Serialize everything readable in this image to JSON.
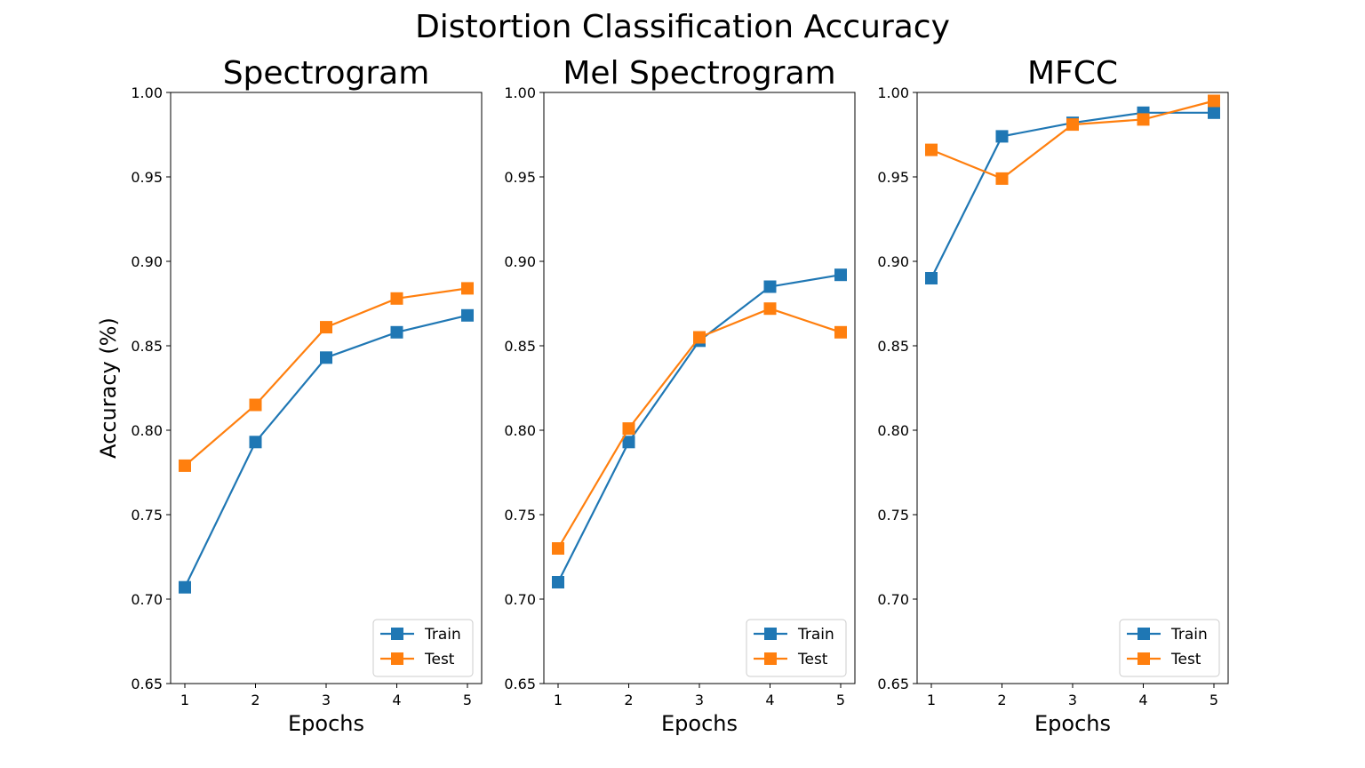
{
  "figure": {
    "title": "Distortion Classification Accuracy"
  },
  "chart_data": [
    {
      "type": "line",
      "title": "Spectrogram",
      "xlabel": "Epochs",
      "ylabel": "Accuracy (%)",
      "x": [
        1,
        2,
        3,
        4,
        5
      ],
      "ylim": [
        0.65,
        1.0
      ],
      "yticks": [
        "0.65",
        "0.70",
        "0.75",
        "0.80",
        "0.85",
        "0.90",
        "0.95",
        "1.00"
      ],
      "xticks": [
        "1",
        "2",
        "3",
        "4",
        "5"
      ],
      "legend": "lower-right",
      "grid": false,
      "series": [
        {
          "name": "Train",
          "color": "#1f77b4",
          "marker": "square",
          "values": [
            0.707,
            0.793,
            0.843,
            0.858,
            0.868
          ]
        },
        {
          "name": "Test",
          "color": "#ff7f0e",
          "marker": "square",
          "values": [
            0.779,
            0.815,
            0.861,
            0.878,
            0.884
          ]
        }
      ]
    },
    {
      "type": "line",
      "title": "Mel Spectrogram",
      "xlabel": "Epochs",
      "ylabel": "",
      "x": [
        1,
        2,
        3,
        4,
        5
      ],
      "ylim": [
        0.65,
        1.0
      ],
      "yticks": [
        "0.65",
        "0.70",
        "0.75",
        "0.80",
        "0.85",
        "0.90",
        "0.95",
        "1.00"
      ],
      "xticks": [
        "1",
        "2",
        "3",
        "4",
        "5"
      ],
      "legend": "lower-right",
      "grid": false,
      "series": [
        {
          "name": "Train",
          "color": "#1f77b4",
          "marker": "square",
          "values": [
            0.71,
            0.793,
            0.853,
            0.885,
            0.892
          ]
        },
        {
          "name": "Test",
          "color": "#ff7f0e",
          "marker": "square",
          "values": [
            0.73,
            0.801,
            0.855,
            0.872,
            0.858
          ]
        }
      ]
    },
    {
      "type": "line",
      "title": "MFCC",
      "xlabel": "Epochs",
      "ylabel": "",
      "x": [
        1,
        2,
        3,
        4,
        5
      ],
      "ylim": [
        0.65,
        1.0
      ],
      "yticks": [
        "0.65",
        "0.70",
        "0.75",
        "0.80",
        "0.85",
        "0.90",
        "0.95",
        "1.00"
      ],
      "xticks": [
        "1",
        "2",
        "3",
        "4",
        "5"
      ],
      "legend": "lower-right",
      "grid": false,
      "series": [
        {
          "name": "Train",
          "color": "#1f77b4",
          "marker": "square",
          "values": [
            0.89,
            0.974,
            0.982,
            0.988,
            0.988
          ]
        },
        {
          "name": "Test",
          "color": "#ff7f0e",
          "marker": "square",
          "values": [
            0.966,
            0.949,
            0.981,
            0.984,
            0.995
          ]
        }
      ]
    }
  ]
}
